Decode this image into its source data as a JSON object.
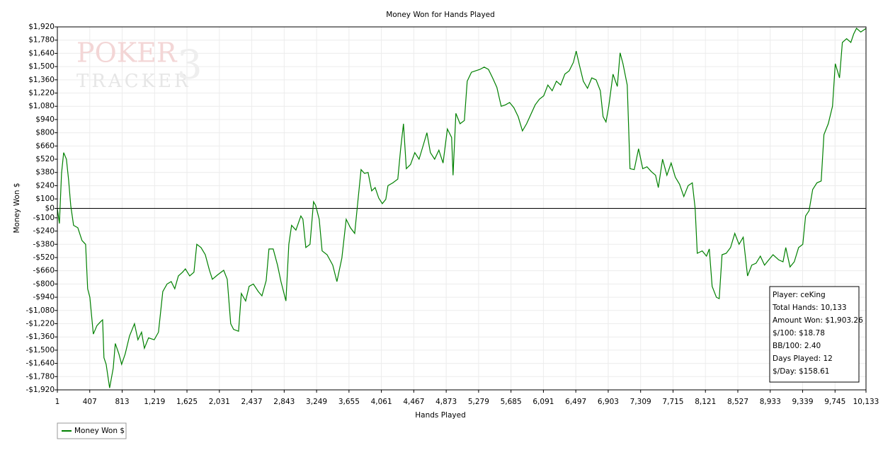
{
  "chart_data": {
    "type": "line",
    "title": "Money Won for Hands Played",
    "xlabel": "Hands Played",
    "ylabel": "Money Won $",
    "watermark": [
      "POKER",
      "TRACKER",
      "3"
    ],
    "legend": "bottom-left",
    "grid": true,
    "xlim": [
      1,
      10133
    ],
    "ylim": [
      -1920,
      1920
    ],
    "xticks": [
      1,
      407,
      813,
      {
        "value": 1219,
        "label": "1,219"
      },
      {
        "value": 1625,
        "label": "1,625"
      },
      {
        "value": 2031,
        "label": "2,031"
      },
      {
        "value": 2437,
        "label": "2,437"
      },
      {
        "value": 2843,
        "label": "2,843"
      },
      {
        "value": 3249,
        "label": "3,249"
      },
      {
        "value": 3655,
        "label": "3,655"
      },
      {
        "value": 4061,
        "label": "4,061"
      },
      {
        "value": 4467,
        "label": "4,467"
      },
      {
        "value": 4873,
        "label": "4,873"
      },
      {
        "value": 5279,
        "label": "5,279"
      },
      {
        "value": 5685,
        "label": "5,685"
      },
      {
        "value": 6091,
        "label": "6,091"
      },
      {
        "value": 6497,
        "label": "6,497"
      },
      {
        "value": 6903,
        "label": "6,903"
      },
      {
        "value": 7309,
        "label": "7,309"
      },
      {
        "value": 7715,
        "label": "7,715"
      },
      {
        "value": 8121,
        "label": "8,121"
      },
      {
        "value": 8527,
        "label": "8,527"
      },
      {
        "value": 8933,
        "label": "8,933"
      },
      {
        "value": 9339,
        "label": "9,339"
      },
      {
        "value": 9745,
        "label": "9,745"
      },
      {
        "value": 10133,
        "label": "10,133"
      }
    ],
    "yticks": [
      {
        "value": 1920,
        "label": "$1,920"
      },
      {
        "value": 1780,
        "label": "$1,780"
      },
      {
        "value": 1640,
        "label": "$1,640"
      },
      {
        "value": 1500,
        "label": "$1,500"
      },
      {
        "value": 1360,
        "label": "$1,360"
      },
      {
        "value": 1220,
        "label": "$1,220"
      },
      {
        "value": 1080,
        "label": "$1,080"
      },
      {
        "value": 940,
        "label": "$940"
      },
      {
        "value": 800,
        "label": "$800"
      },
      {
        "value": 660,
        "label": "$660"
      },
      {
        "value": 520,
        "label": "$520"
      },
      {
        "value": 380,
        "label": "$380"
      },
      {
        "value": 240,
        "label": "$240"
      },
      {
        "value": 100,
        "label": "$100"
      },
      {
        "value": 0,
        "label": "$0"
      },
      {
        "value": -100,
        "label": "-$100"
      },
      {
        "value": -240,
        "label": "-$240"
      },
      {
        "value": -380,
        "label": "-$380"
      },
      {
        "value": -520,
        "label": "-$520"
      },
      {
        "value": -660,
        "label": "-$660"
      },
      {
        "value": -800,
        "label": "-$800"
      },
      {
        "value": -940,
        "label": "-$940"
      },
      {
        "value": -1080,
        "label": "-$1,080"
      },
      {
        "value": -1220,
        "label": "-$1,220"
      },
      {
        "value": -1360,
        "label": "-$1,360"
      },
      {
        "value": -1500,
        "label": "-$1,500"
      },
      {
        "value": -1640,
        "label": "-$1,640"
      },
      {
        "value": -1780,
        "label": "-$1,780"
      },
      {
        "value": -1920,
        "label": "-$1,920"
      }
    ],
    "x": [
      1,
      27,
      53,
      80,
      115,
      142,
      169,
      204,
      257,
      310,
      355,
      381,
      408,
      452,
      497,
      541,
      568,
      585,
      612,
      656,
      701,
      727,
      772,
      807,
      851,
      905,
      967,
      1011,
      1056,
      1091,
      1144,
      1215,
      1268,
      1322,
      1375,
      1428,
      1472,
      1517,
      1570,
      1605,
      1659,
      1712,
      1748,
      1801,
      1854,
      1907,
      1943,
      2014,
      2085,
      2129,
      2173,
      2209,
      2271,
      2306,
      2360,
      2404,
      2457,
      2519,
      2564,
      2617,
      2652,
      2705,
      2759,
      2803,
      2865,
      2901,
      2936,
      2990,
      3052,
      3078,
      3114,
      3167,
      3211,
      3238,
      3282,
      3318,
      3380,
      3451,
      3504,
      3566,
      3620,
      3673,
      3726,
      3761,
      3806,
      3850,
      3894,
      3939,
      3983,
      4027,
      4072,
      4116,
      4143,
      4205,
      4267,
      4302,
      4338,
      4373,
      4426,
      4480,
      4533,
      4586,
      4631,
      4675,
      4728,
      4781,
      4834,
      4888,
      4941,
      4959,
      4994,
      5047,
      5101,
      5136,
      5189,
      5242,
      5295,
      5349,
      5402,
      5455,
      5508,
      5562,
      5615,
      5668,
      5721,
      5775,
      5828,
      5881,
      5934,
      5988,
      6041,
      6094,
      6147,
      6201,
      6254,
      6307,
      6360,
      6414,
      6467,
      6502,
      6538,
      6591,
      6644,
      6697,
      6751,
      6804,
      6839,
      6875,
      6910,
      6963,
      7017,
      7052,
      7088,
      7141,
      7176,
      7229,
      7283,
      7336,
      7389,
      7442,
      7496,
      7531,
      7584,
      7638,
      7691,
      7744,
      7797,
      7850,
      7904,
      7957,
      7992,
      8019,
      8081,
      8134,
      8170,
      8205,
      8258,
      8294,
      8329,
      8382,
      8436,
      8489,
      8542,
      8595,
      8649,
      8702,
      8755,
      8809,
      8862,
      8915,
      8968,
      9039,
      9093,
      9128,
      9181,
      9234,
      9288,
      9341,
      9376,
      9420,
      9465,
      9518,
      9571,
      9606,
      9660,
      9713,
      9748,
      9801,
      9837,
      9890,
      9943,
      9979,
      10014,
      10067,
      10133
    ],
    "series": [
      {
        "name": "Money Won $",
        "color": "#008000",
        "values": [
          0,
          -160,
          370,
          590,
          520,
          300,
          30,
          -180,
          -205,
          -340,
          -380,
          -850,
          -940,
          -1330,
          -1240,
          -1200,
          -1180,
          -1580,
          -1650,
          -1900,
          -1690,
          -1430,
          -1540,
          -1650,
          -1540,
          -1350,
          -1220,
          -1390,
          -1310,
          -1480,
          -1370,
          -1390,
          -1310,
          -880,
          -800,
          -775,
          -850,
          -715,
          -675,
          -640,
          -715,
          -675,
          -380,
          -415,
          -490,
          -655,
          -750,
          -700,
          -655,
          -750,
          -1220,
          -1280,
          -1300,
          -900,
          -980,
          -825,
          -800,
          -880,
          -925,
          -765,
          -430,
          -430,
          -600,
          -775,
          -980,
          -380,
          -180,
          -230,
          -80,
          -115,
          -415,
          -380,
          70,
          30,
          -115,
          -450,
          -490,
          -600,
          -775,
          -525,
          -115,
          -205,
          -265,
          30,
          410,
          370,
          380,
          185,
          220,
          110,
          50,
          95,
          240,
          270,
          310,
          630,
          895,
          420,
          465,
          590,
          520,
          670,
          800,
          590,
          520,
          615,
          480,
          840,
          750,
          350,
          1005,
          895,
          930,
          1345,
          1440,
          1455,
          1470,
          1495,
          1470,
          1380,
          1280,
          1080,
          1095,
          1120,
          1065,
          970,
          820,
          895,
          995,
          1095,
          1155,
          1190,
          1305,
          1245,
          1345,
          1305,
          1420,
          1455,
          1545,
          1665,
          1530,
          1345,
          1270,
          1380,
          1360,
          1245,
          970,
          915,
          1080,
          1420,
          1290,
          1645,
          1530,
          1305,
          420,
          410,
          630,
          420,
          440,
          390,
          350,
          220,
          520,
          350,
          480,
          330,
          255,
          125,
          240,
          270,
          0,
          -475,
          -450,
          -505,
          -430,
          -825,
          -940,
          -955,
          -490,
          -475,
          -415,
          -265,
          -380,
          -305,
          -715,
          -600,
          -580,
          -505,
          -600,
          -545,
          -490,
          -545,
          -565,
          -415,
          -620,
          -565,
          -415,
          -380,
          -80,
          -25,
          200,
          270,
          290,
          780,
          895,
          1080,
          1530,
          1380,
          1755,
          1795,
          1755,
          1845,
          1905,
          1865,
          1903
        ]
      }
    ],
    "stats": [
      "Player: ceKing",
      "Total Hands: 10,133",
      "Amount Won: $1,903.26",
      "$/100: $18.78",
      "BB/100: 2.40",
      "Days Played: 12",
      "$/Day: $158.61"
    ]
  }
}
